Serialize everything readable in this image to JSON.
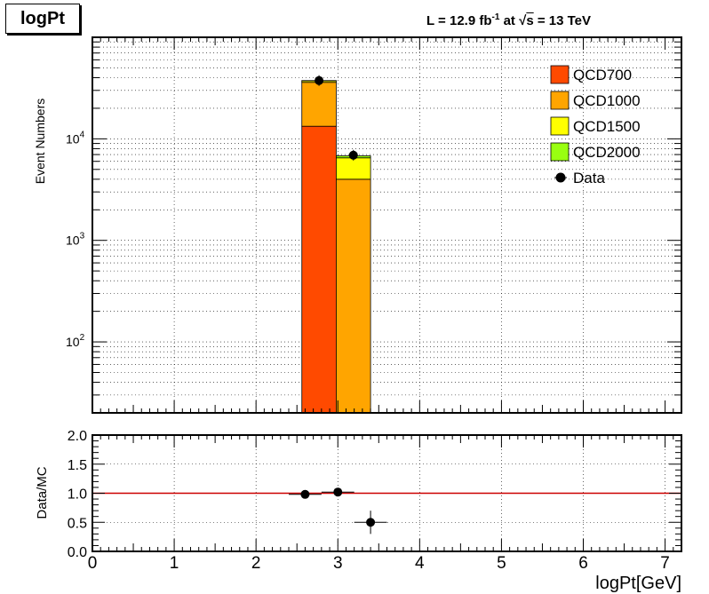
{
  "header": {
    "title": "logPt",
    "lumi_prefix": "L = 12.9 fb",
    "lumi_exp": "-1",
    "lumi_mid": " at ",
    "sqrt_symbol": "√",
    "sqrt_s": "s",
    "energy": " = 13 TeV"
  },
  "colors": {
    "QCD700": "#ff4a00",
    "QCD1000": "#ffa500",
    "QCD1500": "#ffff00",
    "QCD2000": "#99ff11",
    "Data": "#000000",
    "ratio_line": "#cc0000"
  },
  "chart_data": [
    {
      "type": "bar",
      "stacked": true,
      "ylabel": "Event Numbers",
      "yscale": "log",
      "ylim": [
        20,
        100000
      ],
      "xlim": [
        0,
        7.2
      ],
      "grid": true,
      "legend_position": "top-right",
      "y_ticks": [
        {
          "value": 100,
          "base": "10",
          "exp": "2"
        },
        {
          "value": 1000,
          "base": "10",
          "exp": "3"
        },
        {
          "value": 10000,
          "base": "10",
          "exp": "4"
        }
      ],
      "bins": [
        {
          "x0": 2.56,
          "x1": 2.98
        },
        {
          "x0": 2.98,
          "x1": 3.4
        }
      ],
      "series": [
        {
          "name": "QCD700",
          "values": [
            13300,
            0
          ]
        },
        {
          "name": "QCD1000",
          "values": [
            22700,
            4000
          ]
        },
        {
          "name": "QCD1500",
          "values": [
            1300,
            2500
          ]
        },
        {
          "name": "QCD2000",
          "values": [
            200,
            300
          ]
        }
      ],
      "data_points": {
        "name": "Data",
        "x": [
          2.77,
          3.19
        ],
        "y": [
          37500,
          6900
        ]
      }
    },
    {
      "type": "scatter",
      "ylabel": "Data/MC",
      "xlabel": "logPt[GeV]",
      "xlim": [
        0,
        7.2
      ],
      "ylim": [
        0,
        2
      ],
      "grid": true,
      "x_tick_labels": [
        "0",
        "1",
        "2",
        "3",
        "4",
        "5",
        "6",
        "7"
      ],
      "y_tick_labels": [
        "0.0",
        "0.5",
        "1.0",
        "1.5",
        "2.0"
      ],
      "reference_line": 1.0,
      "points": [
        {
          "x": 2.6,
          "y": 0.98,
          "x_err": 0.2,
          "y_err": 0.02
        },
        {
          "x": 3.0,
          "y": 1.02,
          "x_err": 0.2,
          "y_err": 0.03
        },
        {
          "x": 3.4,
          "y": 0.5,
          "x_err": 0.2,
          "y_err": 0.2
        }
      ]
    }
  ]
}
